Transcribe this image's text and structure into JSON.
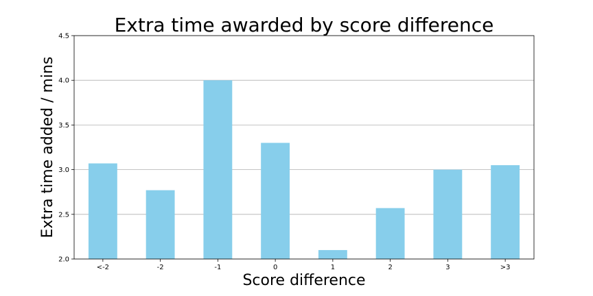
{
  "chart_data": {
    "type": "bar",
    "title": "Extra time awarded by score difference",
    "xlabel": "Score difference",
    "ylabel": "Extra time added / mins",
    "categories": [
      "<-2",
      "-2",
      "-1",
      "0",
      "1",
      "2",
      "3",
      ">3"
    ],
    "values": [
      3.07,
      2.77,
      4.0,
      3.3,
      2.1,
      2.57,
      3.0,
      3.05
    ],
    "ylim": [
      2.0,
      4.5
    ],
    "yticks": [
      "2.0",
      "2.5",
      "3.0",
      "3.5",
      "4.0",
      "4.5"
    ],
    "grid": "y",
    "bar_color": "#87ceeb"
  }
}
